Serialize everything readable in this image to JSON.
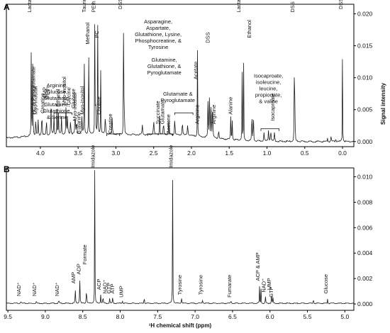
{
  "panel_labels": {
    "a": "A",
    "b": "B"
  },
  "chart_data": [
    {
      "type": "line",
      "panel": "A",
      "title": "",
      "xlabel": "",
      "ylabel": "Signal intensity",
      "x_reversed": true,
      "xlim": [
        4.45,
        -0.15
      ],
      "ylim": [
        -0.0008,
        0.0215
      ],
      "xticks": [
        {
          "v": 4.0,
          "label": "4.0"
        },
        {
          "v": 3.5,
          "label": "3.5"
        },
        {
          "v": 3.0,
          "label": "3.0"
        },
        {
          "v": 2.5,
          "label": "2.5"
        },
        {
          "v": 2.0,
          "label": "2.0"
        },
        {
          "v": 1.5,
          "label": "1.5"
        },
        {
          "v": 1.0,
          "label": "1.0"
        },
        {
          "v": 0.5,
          "label": "0.5"
        },
        {
          "v": 0.0,
          "label": "0.0"
        }
      ],
      "yticks": [
        {
          "v": 0.0,
          "label": "0.000"
        },
        {
          "v": 0.005,
          "label": "0.005"
        },
        {
          "v": 0.01,
          "label": "0.010"
        },
        {
          "v": 0.015,
          "label": "0.015"
        },
        {
          "v": 0.02,
          "label": "0.020"
        }
      ],
      "peaks": [
        [
          4.12,
          0.0195,
          0.004
        ],
        [
          4.1,
          0.0193,
          0.004
        ],
        [
          4.06,
          0.0035,
          0.006
        ],
        [
          4.03,
          0.0025,
          0.006
        ],
        [
          3.98,
          0.0038,
          0.008
        ],
        [
          3.92,
          0.003,
          0.006
        ],
        [
          3.86,
          0.0045,
          0.008
        ],
        [
          3.82,
          0.003,
          0.006
        ],
        [
          3.78,
          0.004,
          0.006
        ],
        [
          3.76,
          0.0032,
          0.006
        ],
        [
          3.72,
          0.0028,
          0.006
        ],
        [
          3.66,
          0.005,
          0.006
        ],
        [
          3.64,
          0.0035,
          0.006
        ],
        [
          3.6,
          0.003,
          0.006
        ],
        [
          3.54,
          0.0045,
          0.006
        ],
        [
          3.52,
          0.003,
          0.006
        ],
        [
          3.45,
          0.003,
          0.006
        ],
        [
          3.42,
          0.019,
          0.004
        ],
        [
          3.36,
          0.014,
          0.004
        ],
        [
          3.28,
          0.017,
          0.004
        ],
        [
          3.27,
          0.012,
          0.004
        ],
        [
          3.24,
          0.02,
          0.004
        ],
        [
          3.2,
          0.015,
          0.004
        ],
        [
          3.14,
          0.003,
          0.008
        ],
        [
          3.05,
          0.0025,
          0.008
        ],
        [
          2.9,
          0.0205,
          0.003
        ],
        [
          2.89,
          0.0198,
          0.003
        ],
        [
          2.65,
          0.0015,
          0.01
        ],
        [
          2.5,
          0.0022,
          0.01
        ],
        [
          2.42,
          0.003,
          0.006
        ],
        [
          2.37,
          0.0028,
          0.006
        ],
        [
          2.3,
          0.0022,
          0.008
        ],
        [
          2.22,
          0.0035,
          0.006
        ],
        [
          2.12,
          0.0025,
          0.008
        ],
        [
          2.05,
          0.0018,
          0.01
        ],
        [
          1.92,
          0.0135,
          0.004
        ],
        [
          1.78,
          0.011,
          0.004
        ],
        [
          1.76,
          0.014,
          0.004
        ],
        [
          1.74,
          0.012,
          0.004
        ],
        [
          1.72,
          0.009,
          0.005
        ],
        [
          1.64,
          0.0015,
          0.008
        ],
        [
          1.48,
          0.0035,
          0.006
        ],
        [
          1.46,
          0.003,
          0.006
        ],
        [
          1.33,
          0.02,
          0.003
        ],
        [
          1.31,
          0.019,
          0.003
        ],
        [
          1.2,
          0.015,
          0.003
        ],
        [
          1.18,
          0.013,
          0.003
        ],
        [
          1.04,
          0.0015,
          0.008
        ],
        [
          0.98,
          0.0018,
          0.008
        ],
        [
          0.95,
          0.002,
          0.008
        ],
        [
          0.9,
          0.0015,
          0.008
        ],
        [
          0.64,
          0.018,
          0.003
        ],
        [
          0.63,
          0.0185,
          0.003
        ],
        [
          0.2,
          0.001,
          0.004
        ],
        [
          0.15,
          0.0015,
          0.004
        ],
        [
          0.09,
          0.0012,
          0.004
        ],
        [
          0.0,
          0.0205,
          0.003
        ]
      ],
      "annotations": [
        {
          "x": 4.12,
          "y": 0.02,
          "text": "Lactate"
        },
        {
          "x": 4.07,
          "y": 0.004,
          "text": "PC & Pyroglutamate"
        },
        {
          "x": 4.04,
          "y": 0.004,
          "text": "Myo-inositol"
        },
        {
          "x": 3.95,
          "y": 0.0042,
          "text": "Creatine"
        },
        {
          "x": 3.92,
          "y": 0.0065,
          "text": "AMP"
        },
        {
          "x": 3.88,
          "y": 0.0065,
          "text": "PEth"
        },
        {
          "x": 3.74,
          "y": 0.0052,
          "text": "Ethanol"
        },
        {
          "x": 3.66,
          "y": 0.0055,
          "text": "Myo-inositol"
        },
        {
          "x": 3.6,
          "y": 0.0055,
          "text": "Glycine"
        },
        {
          "x": 3.54,
          "y": 0.005,
          "text": "Glucose"
        },
        {
          "x": 3.52,
          "y": 0.003,
          "text": "Myo-inositol"
        },
        {
          "x": 3.47,
          "y": 0.001,
          "text": "β-alanine"
        },
        {
          "x": 3.42,
          "y": 0.004,
          "text": "Myo-inositol"
        },
        {
          "x": 3.4,
          "y": 0.02,
          "text": "Taurine"
        },
        {
          "x": 3.35,
          "y": 0.015,
          "text": "Methanol"
        },
        {
          "x": 3.27,
          "y": 0.02,
          "text": "PEth"
        },
        {
          "x": 3.23,
          "y": 0.016,
          "text": "PC"
        },
        {
          "x": 3.2,
          "y": 0.004,
          "text": "Choline"
        },
        {
          "x": 3.05,
          "y": 0.001,
          "text": "Creatine"
        },
        {
          "x": 2.92,
          "y": 0.0205,
          "text": "DSS"
        },
        {
          "x": 2.42,
          "y": 0.0025,
          "text": "Succinate"
        },
        {
          "x": 2.36,
          "y": 0.0025,
          "text": "Glutamate"
        },
        {
          "x": 2.28,
          "y": 0.001,
          "text": "Acetone"
        },
        {
          "x": 1.92,
          "y": 0.0095,
          "text": "Acetate"
        },
        {
          "x": 1.9,
          "y": 0.0025,
          "text": "Arginine"
        },
        {
          "x": 1.76,
          "y": 0.0152,
          "text": "DSS"
        },
        {
          "x": 1.68,
          "y": 0.0025,
          "text": "Arginine"
        },
        {
          "x": 1.46,
          "y": 0.004,
          "text": "Alanine"
        },
        {
          "x": 1.35,
          "y": 0.02,
          "text": "Lactate"
        },
        {
          "x": 1.21,
          "y": 0.016,
          "text": "Ethanol"
        },
        {
          "x": 0.9,
          "y": 0.003,
          "text": "Isocaproate"
        },
        {
          "x": 0.64,
          "y": 0.02,
          "text": "DSS"
        },
        {
          "x": 0.0,
          "y": 0.0205,
          "text": "DSS"
        }
      ],
      "blocks": [
        {
          "x": 3.78,
          "y": 0.0085,
          "lines": [
            "Arginine,",
            "Glucose,",
            "Glutamate,",
            "Glutamine,",
            "Glutathione,",
            "& Serine"
          ]
        },
        {
          "x": 2.44,
          "y": 0.0185,
          "lines": [
            "Asparagine,",
            "Aspartate,",
            "Glutathione,  Lysine,",
            "Phosphocreatine, &",
            "Tyrosine"
          ]
        },
        {
          "x": 2.36,
          "y": 0.0125,
          "lines": [
            "Glutamine,",
            "Glutathione,  &",
            "Pyroglutamate"
          ]
        },
        {
          "x": 2.18,
          "y": 0.0072,
          "lines": [
            "Glutamate  &",
            "Pyroglutamate"
          ]
        },
        {
          "x": 0.98,
          "y": 0.01,
          "lines": [
            "Isocaproate,",
            "isoleucine,",
            "leucine,",
            "propionate,",
            "& valine"
          ]
        }
      ],
      "brackets": [
        {
          "x1": 3.82,
          "x2": 3.58,
          "y": 0.0045
        },
        {
          "x1": 3.12,
          "x2": 2.95,
          "y": 0.0012
        },
        {
          "x1": 2.58,
          "x2": 2.25,
          "y": 0.0012
        },
        {
          "x1": 2.22,
          "x2": 1.98,
          "y": 0.0045
        },
        {
          "x1": 1.08,
          "x2": 0.84,
          "y": 0.002
        }
      ]
    },
    {
      "type": "line",
      "panel": "B",
      "title": "",
      "xlabel": "¹H chemical shift (ppm)",
      "ylabel": "",
      "x_reversed": true,
      "xlim": [
        9.52,
        4.88
      ],
      "ylim": [
        -0.0005,
        0.0107
      ],
      "xticks": [
        {
          "v": 9.5,
          "label": "9.5"
        },
        {
          "v": 9.0,
          "label": "9.0"
        },
        {
          "v": 8.5,
          "label": "8.5"
        },
        {
          "v": 8.0,
          "label": "8.0"
        },
        {
          "v": 7.5,
          "label": "7.5"
        },
        {
          "v": 7.0,
          "label": "7.0"
        },
        {
          "v": 6.5,
          "label": "6.5"
        },
        {
          "v": 6.0,
          "label": "6.0"
        },
        {
          "v": 5.5,
          "label": "5.5"
        },
        {
          "v": 5.0,
          "label": "5.0"
        }
      ],
      "yticks": [
        {
          "v": 0.0,
          "label": "0.000"
        },
        {
          "v": 0.002,
          "label": "0.002"
        },
        {
          "v": 0.004,
          "label": "0.004"
        },
        {
          "v": 0.006,
          "label": "0.006"
        },
        {
          "v": 0.008,
          "label": "0.008"
        },
        {
          "v": 0.01,
          "label": "0.010"
        }
      ],
      "peaks": [
        [
          9.33,
          0.00015,
          0.01
        ],
        [
          9.12,
          0.00015,
          0.01
        ],
        [
          8.82,
          0.0002,
          0.01
        ],
        [
          8.6,
          0.0012,
          0.006
        ],
        [
          8.54,
          0.002,
          0.006
        ],
        [
          8.45,
          0.0015,
          0.006
        ],
        [
          8.34,
          0.0105,
          0.004
        ],
        [
          8.26,
          0.0007,
          0.006
        ],
        [
          8.23,
          0.0006,
          0.006
        ],
        [
          8.14,
          0.0004,
          0.006
        ],
        [
          8.1,
          0.0005,
          0.006
        ],
        [
          7.97,
          0.0002,
          0.008
        ],
        [
          7.68,
          0.001,
          0.004
        ],
        [
          7.3,
          0.0105,
          0.004
        ],
        [
          7.18,
          0.0004,
          0.008
        ],
        [
          6.9,
          0.0003,
          0.008
        ],
        [
          6.52,
          0.0002,
          0.008
        ],
        [
          6.14,
          0.0014,
          0.004
        ],
        [
          6.12,
          0.0012,
          0.004
        ],
        [
          6.06,
          0.0005,
          0.006
        ],
        [
          5.98,
          0.0006,
          0.006
        ],
        [
          5.96,
          0.00045,
          0.006
        ],
        [
          5.42,
          0.0008,
          0.004
        ],
        [
          5.23,
          0.0005,
          0.004
        ]
      ],
      "annotations": [
        {
          "x": 9.33,
          "y": 0.0005,
          "text": "NAD⁺"
        },
        {
          "x": 9.12,
          "y": 0.0005,
          "text": "NAD⁺"
        },
        {
          "x": 8.82,
          "y": 0.0005,
          "text": "NAD⁺"
        },
        {
          "x": 8.6,
          "y": 0.0015,
          "text": "AMP"
        },
        {
          "x": 8.53,
          "y": 0.0022,
          "text": "ADP"
        },
        {
          "x": 8.45,
          "y": 0.003,
          "text": "Formate"
        },
        {
          "x": 8.34,
          "y": 0.0106,
          "text": "Imidazole"
        },
        {
          "x": 8.26,
          "y": 0.001,
          "text": "ACP"
        },
        {
          "x": 8.18,
          "y": 0.0007,
          "text": "NAD⁺"
        },
        {
          "x": 8.13,
          "y": 0.0007,
          "text": "GTP"
        },
        {
          "x": 8.08,
          "y": 0.0007,
          "text": "ATP"
        },
        {
          "x": 7.96,
          "y": 0.0004,
          "text": "UMP"
        },
        {
          "x": 7.3,
          "y": 0.0106,
          "text": "Imidazole"
        },
        {
          "x": 7.18,
          "y": 0.0006,
          "text": "Tyrosine"
        },
        {
          "x": 6.9,
          "y": 0.0006,
          "text": "Tyrosine"
        },
        {
          "x": 6.52,
          "y": 0.0004,
          "text": "Fumarate"
        },
        {
          "x": 6.14,
          "y": 0.0017,
          "text": "ACP & AMP"
        },
        {
          "x": 6.06,
          "y": 0.0008,
          "text": "NAD⁺"
        },
        {
          "x": 5.99,
          "y": 0.001,
          "text": "UMP"
        },
        {
          "x": 5.96,
          "y": 0.0004,
          "text": "GTP"
        },
        {
          "x": 5.23,
          "y": 0.0007,
          "text": "Glucose"
        }
      ],
      "blocks": [],
      "brackets": []
    }
  ]
}
